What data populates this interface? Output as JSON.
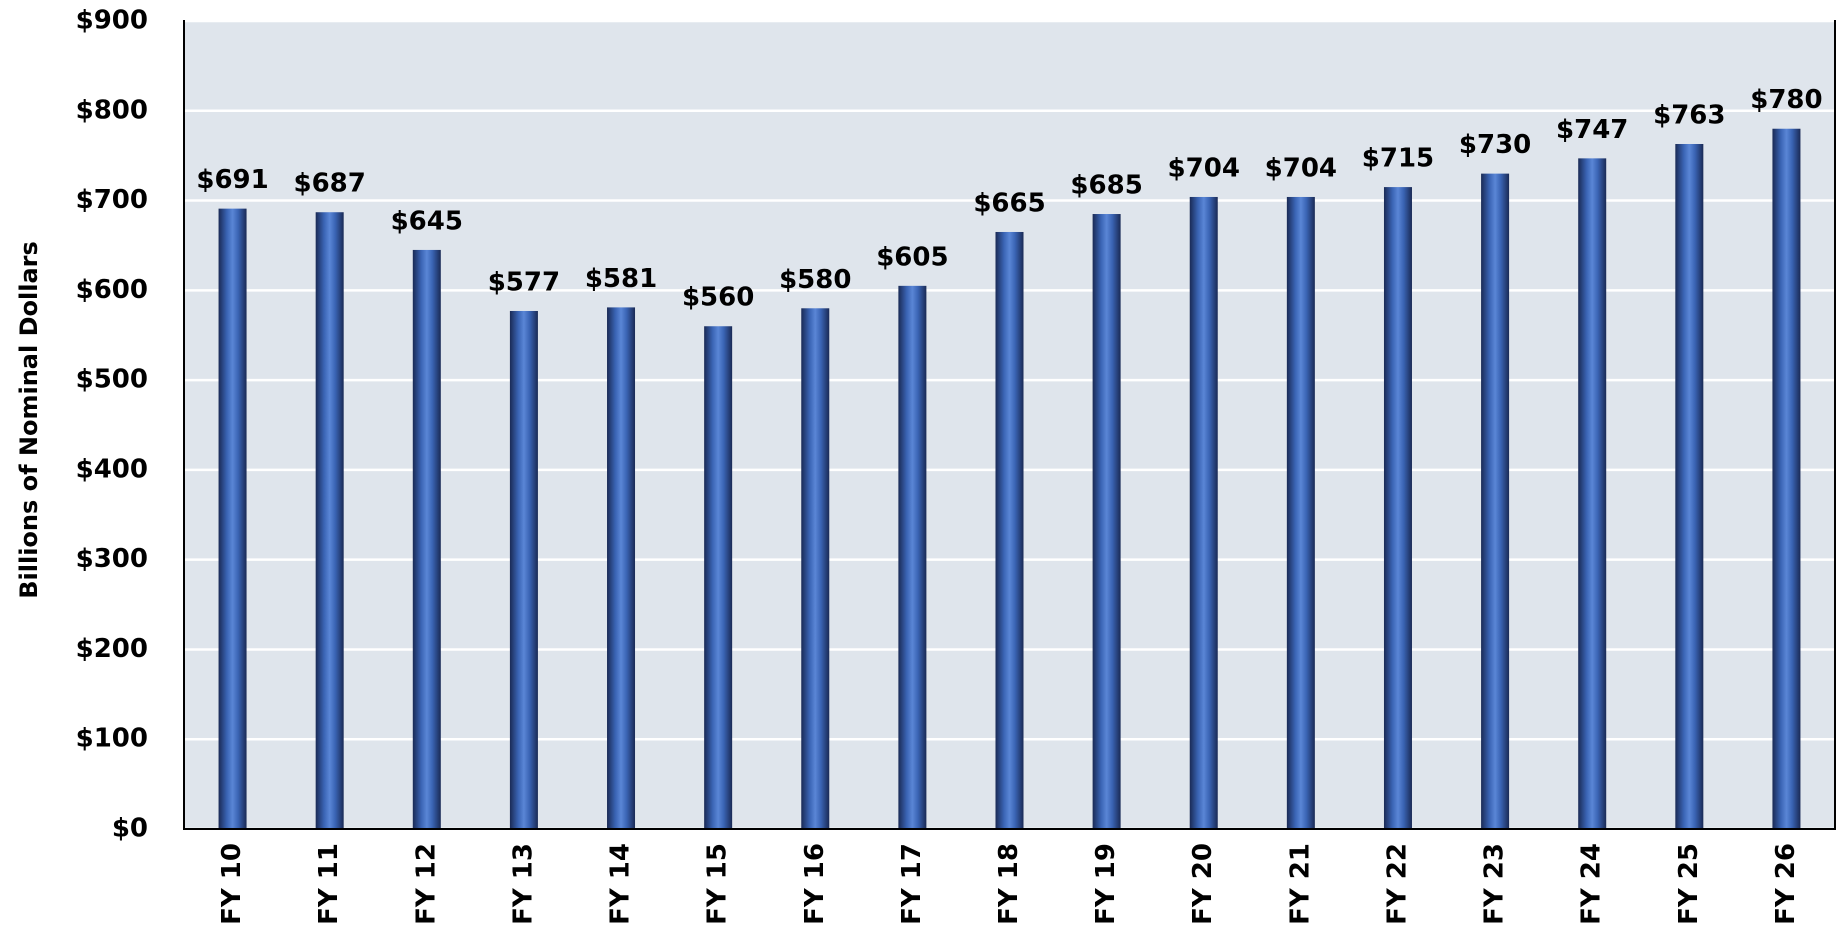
{
  "chart_data": {
    "type": "bar",
    "y_label": "Billions of Nominal Dollars",
    "categories": [
      "FY 10",
      "FY 11",
      "FY 12",
      "FY 13",
      "FY 14",
      "FY 15",
      "FY 16",
      "FY 17",
      "FY 18",
      "FY 19",
      "FY 20",
      "FY 21",
      "FY 22",
      "FY 23",
      "FY 24",
      "FY 25",
      "FY 26"
    ],
    "values": [
      691,
      687,
      645,
      577,
      581,
      560,
      580,
      605,
      665,
      685,
      704,
      704,
      715,
      730,
      747,
      763,
      780
    ],
    "value_labels": [
      "$691",
      "$687",
      "$645",
      "$577",
      "$581",
      "$560",
      "$580",
      "$605",
      "$665",
      "$685",
      "$704",
      "$704",
      "$715",
      "$730",
      "$747",
      "$763",
      "$780"
    ],
    "color": "#3a64b4",
    "ylim": [
      0,
      900
    ],
    "yticks": [
      {
        "value": 0,
        "label": "$0"
      },
      {
        "value": 100,
        "label": "$100"
      },
      {
        "value": 200,
        "label": "$200"
      },
      {
        "value": 300,
        "label": "$300"
      },
      {
        "value": 400,
        "label": "$400"
      },
      {
        "value": 500,
        "label": "$500"
      },
      {
        "value": 600,
        "label": "$600"
      },
      {
        "value": 700,
        "label": "$700"
      },
      {
        "value": 800,
        "label": "$800"
      },
      {
        "value": 900,
        "label": "$900"
      }
    ],
    "grid": true
  }
}
